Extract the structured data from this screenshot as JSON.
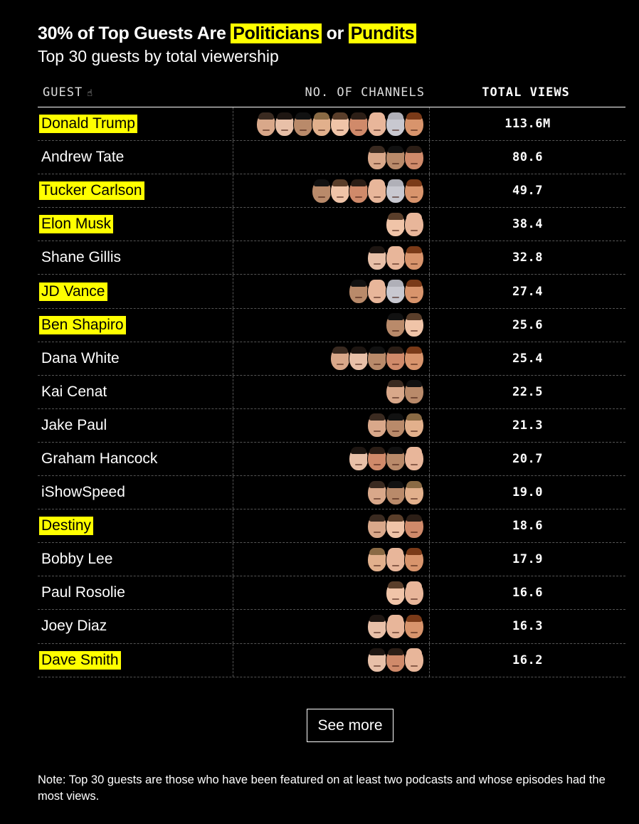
{
  "title": {
    "prefix": "30% of Top Guests Are ",
    "hl1": "Politicians",
    "mid": " or ",
    "hl2": "Pundits"
  },
  "subtitle": "Top 30 guests by total viewership",
  "headers": {
    "guest": "GUEST",
    "channels": "NO. OF CHANNELS",
    "views": "TOTAL VIEWS"
  },
  "highlight_color": "#ffff00",
  "face_palette": {
    "a": {
      "skin": "#d9a88a",
      "hair": "#3a2a20"
    },
    "b": {
      "skin": "#e8c0a8",
      "hair": "#1e1612"
    },
    "c": {
      "skin": "#b98a6a",
      "hair": "#111111"
    },
    "d": {
      "skin": "#e2b08c",
      "hair": "#8a6a44"
    },
    "e": {
      "skin": "#f0c4a8",
      "hair": "#5a3e2a"
    },
    "f": {
      "skin": "#d08a6a",
      "hair": "#2c1e16"
    },
    "g": {
      "skin": "#e8b69a",
      "hair": "#e8b69a"
    },
    "h": {
      "skin": "#c8c8d0",
      "hair": "#b0b0b8"
    },
    "i": {
      "skin": "#d8946c",
      "hair": "#7a3a18"
    }
  },
  "chart_data": {
    "type": "table",
    "columns": [
      "GUEST",
      "NO. OF CHANNELS",
      "TOTAL VIEWS"
    ],
    "rows": [
      {
        "guest": "Donald Trump",
        "highlight": true,
        "channels": 9,
        "faces": [
          "a",
          "b",
          "c",
          "d",
          "e",
          "f",
          "g",
          "h",
          "i"
        ],
        "views": "113.6M"
      },
      {
        "guest": "Andrew Tate",
        "highlight": false,
        "channels": 3,
        "faces": [
          "a",
          "c",
          "f"
        ],
        "views": "80.6"
      },
      {
        "guest": "Tucker Carlson",
        "highlight": true,
        "channels": 6,
        "faces": [
          "c",
          "e",
          "f",
          "g",
          "h",
          "i"
        ],
        "views": "49.7"
      },
      {
        "guest": "Elon Musk",
        "highlight": true,
        "channels": 2,
        "faces": [
          "e",
          "g"
        ],
        "views": "38.4"
      },
      {
        "guest": "Shane Gillis",
        "highlight": false,
        "channels": 3,
        "faces": [
          "b",
          "g",
          "i"
        ],
        "views": "32.8"
      },
      {
        "guest": "JD Vance",
        "highlight": true,
        "channels": 4,
        "faces": [
          "c",
          "g",
          "h",
          "i"
        ],
        "views": "27.4"
      },
      {
        "guest": "Ben Shapiro",
        "highlight": true,
        "channels": 2,
        "faces": [
          "c",
          "e"
        ],
        "views": "25.6"
      },
      {
        "guest": "Dana White",
        "highlight": false,
        "channels": 5,
        "faces": [
          "a",
          "b",
          "c",
          "f",
          "i"
        ],
        "views": "25.4"
      },
      {
        "guest": "Kai Cenat",
        "highlight": false,
        "channels": 2,
        "faces": [
          "a",
          "c"
        ],
        "views": "22.5"
      },
      {
        "guest": "Jake Paul",
        "highlight": false,
        "channels": 3,
        "faces": [
          "a",
          "c",
          "d"
        ],
        "views": "21.3"
      },
      {
        "guest": "Graham Hancock",
        "highlight": false,
        "channels": 4,
        "faces": [
          "b",
          "f",
          "c",
          "g"
        ],
        "views": "20.7"
      },
      {
        "guest": "iShowSpeed",
        "highlight": false,
        "channels": 3,
        "faces": [
          "a",
          "c",
          "d"
        ],
        "views": "19.0"
      },
      {
        "guest": "Destiny",
        "highlight": true,
        "channels": 3,
        "faces": [
          "a",
          "e",
          "f"
        ],
        "views": "18.6"
      },
      {
        "guest": "Bobby Lee",
        "highlight": false,
        "channels": 3,
        "faces": [
          "d",
          "g",
          "i"
        ],
        "views": "17.9"
      },
      {
        "guest": "Paul Rosolie",
        "highlight": false,
        "channels": 2,
        "faces": [
          "e",
          "g"
        ],
        "views": "16.6"
      },
      {
        "guest": "Joey Diaz",
        "highlight": false,
        "channels": 3,
        "faces": [
          "b",
          "g",
          "i"
        ],
        "views": "16.3"
      },
      {
        "guest": "Dave Smith",
        "highlight": true,
        "channels": 3,
        "faces": [
          "b",
          "f",
          "g"
        ],
        "views": "16.2"
      }
    ]
  },
  "see_more": "See more",
  "note": "Note: Top 30 guests are those who have been featured on at least two podcasts and whose episodes had the most views."
}
